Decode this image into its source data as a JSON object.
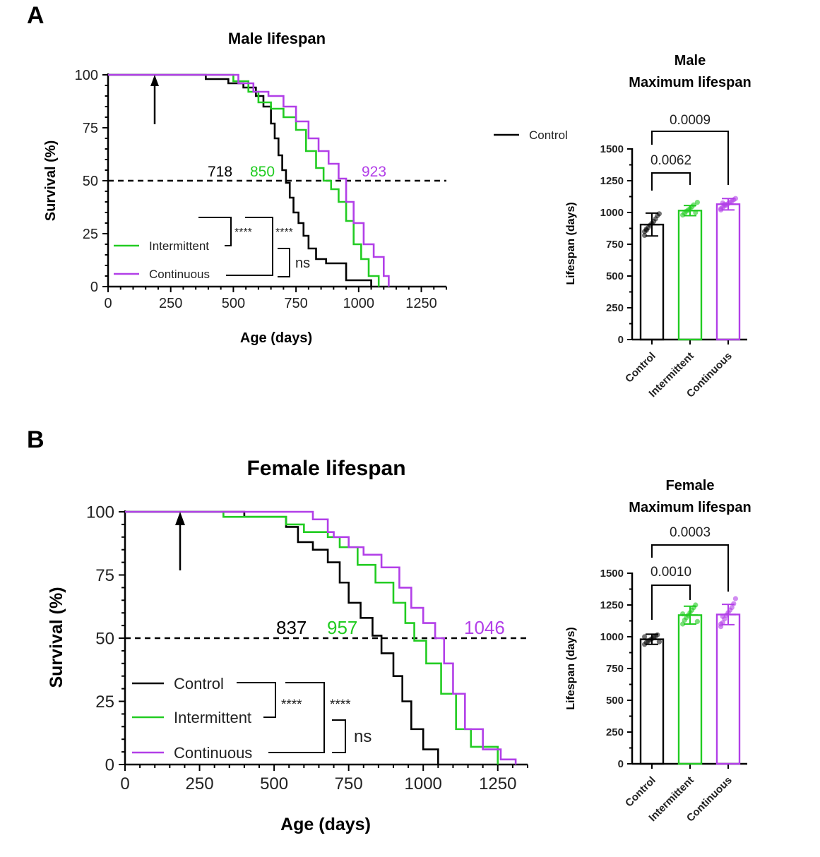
{
  "colors": {
    "control": "#000000",
    "intermittent": "#22cc22",
    "continuous": "#b23fe8"
  },
  "panels": {
    "A": {
      "letter": "A",
      "survival": {
        "title": "Male lifespan",
        "xlabel": "Age (days)",
        "ylabel": "Survival (%)",
        "medians": [
          "718",
          "850",
          "923"
        ],
        "legend": [
          "Control",
          "Intermittent",
          "Continuous"
        ],
        "stars": [
          "****",
          "****"
        ],
        "ns": "ns"
      },
      "bar": {
        "title_line1": "Male",
        "title_line2": "Maximum lifespan",
        "ylabel": "Lifespan (days)",
        "p_values": [
          "0.0062",
          "0.0009"
        ]
      }
    },
    "B": {
      "letter": "B",
      "survival": {
        "title": "Female lifespan",
        "xlabel": "Age (days)",
        "ylabel": "Survival (%)",
        "medians": [
          "837",
          "957",
          "1046"
        ],
        "legend": [
          "Control",
          "Intermittent",
          "Continuous"
        ],
        "stars": [
          "****",
          "****"
        ],
        "ns": "ns"
      },
      "bar": {
        "title_line1": "Female",
        "title_line2": "Maximum lifespan",
        "ylabel": "Lifespan (days)",
        "p_values": [
          "0.0010",
          "0.0003"
        ]
      }
    }
  },
  "chart_data": [
    {
      "type": "line",
      "title": "Male lifespan",
      "xlabel": "Age (days)",
      "ylabel": "Survival (%)",
      "xlim": [
        0,
        1350
      ],
      "ylim": [
        0,
        100
      ],
      "xticks": [
        0,
        250,
        500,
        750,
        1000,
        1250
      ],
      "yticks": [
        0,
        25,
        50,
        75,
        100
      ],
      "reference_line_y": 50,
      "intervention_arrow_x": 185,
      "series": [
        {
          "name": "Control",
          "median": 718,
          "x": [
            0,
            390,
            480,
            540,
            590,
            620,
            650,
            665,
            680,
            695,
            710,
            725,
            740,
            760,
            780,
            800,
            830,
            870,
            950,
            1050
          ],
          "y": [
            100,
            98,
            96,
            94,
            90,
            85,
            77,
            70,
            62,
            55,
            49,
            42,
            35,
            30,
            24,
            18,
            13,
            11,
            3,
            0
          ]
        },
        {
          "name": "Intermittent",
          "median": 850,
          "x": [
            0,
            400,
            500,
            560,
            600,
            650,
            700,
            750,
            790,
            830,
            860,
            890,
            920,
            950,
            980,
            1010,
            1040,
            1080
          ],
          "y": [
            100,
            100,
            97,
            92,
            87,
            84,
            80,
            74,
            64,
            56,
            50,
            46,
            40,
            31,
            20,
            13,
            5,
            0
          ]
        },
        {
          "name": "Continuous",
          "median": 923,
          "x": [
            0,
            450,
            520,
            580,
            640,
            700,
            750,
            800,
            840,
            880,
            920,
            950,
            980,
            1020,
            1060,
            1100,
            1120
          ],
          "y": [
            100,
            100,
            96,
            92,
            90,
            85,
            78,
            70,
            64,
            58,
            51,
            40,
            30,
            20,
            14,
            5,
            0
          ]
        }
      ]
    },
    {
      "type": "bar",
      "title": "Male Maximum lifespan",
      "ylabel": "Lifespan (days)",
      "categories": [
        "Control",
        "Intermittent",
        "Continuous"
      ],
      "values": [
        905,
        1015,
        1065
      ],
      "errors": [
        90,
        40,
        45
      ],
      "ylim": [
        0,
        1500
      ],
      "yticks": [
        0,
        250,
        500,
        750,
        1000,
        1250,
        1500
      ],
      "points": [
        [
          850,
          870,
          880,
          900,
          915,
          930,
          950,
          975,
          990,
          820,
          860
        ],
        [
          980,
          995,
          1010,
          1020,
          1030,
          1045,
          1060,
          1000,
          1080
        ],
        [
          1020,
          1040,
          1050,
          1060,
          1070,
          1080,
          1090,
          1100,
          1110,
          1030,
          1075,
          1065
        ]
      ],
      "comparisons": [
        {
          "pair": [
            "Control",
            "Intermittent"
          ],
          "p": "0.0062"
        },
        {
          "pair": [
            "Control",
            "Continuous"
          ],
          "p": "0.0009"
        }
      ]
    },
    {
      "type": "line",
      "title": "Female lifespan",
      "xlabel": "Age (days)",
      "ylabel": "Survival (%)",
      "xlim": [
        0,
        1350
      ],
      "ylim": [
        0,
        100
      ],
      "xticks": [
        0,
        250,
        500,
        750,
        1000,
        1250
      ],
      "yticks": [
        0,
        25,
        50,
        75,
        100
      ],
      "reference_line_y": 50,
      "intervention_arrow_x": 185,
      "series": [
        {
          "name": "Control",
          "median": 837,
          "x": [
            0,
            400,
            540,
            580,
            630,
            680,
            720,
            750,
            790,
            830,
            860,
            900,
            930,
            960,
            1000,
            1050
          ],
          "y": [
            100,
            98,
            94,
            88,
            85,
            80,
            72,
            64,
            58,
            51,
            44,
            35,
            25,
            14,
            6,
            0
          ]
        },
        {
          "name": "Intermittent",
          "median": 957,
          "x": [
            0,
            330,
            400,
            540,
            600,
            680,
            720,
            780,
            840,
            900,
            940,
            970,
            1010,
            1060,
            1110,
            1160,
            1250
          ],
          "y": [
            100,
            98,
            98,
            95,
            92,
            90,
            86,
            79,
            72,
            64,
            56,
            49,
            40,
            28,
            14,
            7,
            0
          ]
        },
        {
          "name": "Continuous",
          "median": 1046,
          "x": [
            0,
            600,
            630,
            680,
            700,
            750,
            800,
            860,
            920,
            960,
            1000,
            1040,
            1070,
            1100,
            1140,
            1200,
            1260,
            1310
          ],
          "y": [
            100,
            100,
            97,
            92,
            90,
            86,
            83,
            78,
            70,
            62,
            56,
            50,
            40,
            28,
            14,
            6,
            2,
            0
          ]
        }
      ]
    },
    {
      "type": "bar",
      "title": "Female Maximum lifespan",
      "ylabel": "Lifespan (days)",
      "categories": [
        "Control",
        "Intermittent",
        "Continuous"
      ],
      "values": [
        980,
        1170,
        1175
      ],
      "errors": [
        40,
        70,
        80
      ],
      "ylim": [
        0,
        1500
      ],
      "yticks": [
        0,
        250,
        500,
        750,
        1000,
        1250,
        1500
      ],
      "points": [
        [
          940,
          955,
          965,
          975,
          985,
          995,
          1005,
          1015,
          960,
          1000
        ],
        [
          1100,
          1130,
          1150,
          1170,
          1190,
          1210,
          1230,
          1250,
          1120,
          1180
        ],
        [
          1080,
          1110,
          1140,
          1170,
          1190,
          1210,
          1230,
          1260,
          1300,
          1100,
          1160
        ]
      ],
      "comparisons": [
        {
          "pair": [
            "Control",
            "Intermittent"
          ],
          "p": "0.0010"
        },
        {
          "pair": [
            "Control",
            "Continuous"
          ],
          "p": "0.0003"
        }
      ]
    }
  ]
}
